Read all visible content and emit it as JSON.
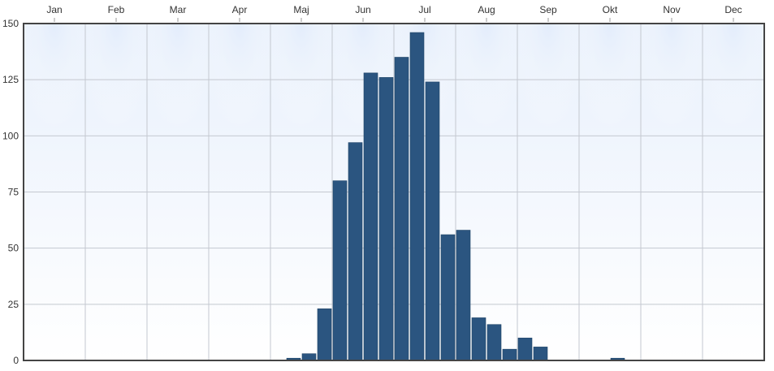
{
  "chart_data": {
    "type": "bar",
    "x_axis": {
      "position": "top",
      "labels": [
        "Jan",
        "Feb",
        "Mar",
        "Apr",
        "Maj",
        "Jun",
        "Jul",
        "Aug",
        "Sep",
        "Okt",
        "Nov",
        "Dec"
      ]
    },
    "y_axis": {
      "ticks": [
        0,
        25,
        50,
        75,
        100,
        125,
        150
      ],
      "ylim": [
        0,
        150
      ]
    },
    "grid": true,
    "bin_width_months": 0.25,
    "series": [
      {
        "color": "#2b5580",
        "bins": [
          {
            "start": 4.25,
            "value": 1
          },
          {
            "start": 4.5,
            "value": 3
          },
          {
            "start": 4.75,
            "value": 23
          },
          {
            "start": 5.0,
            "value": 80
          },
          {
            "start": 5.25,
            "value": 97
          },
          {
            "start": 5.5,
            "value": 128
          },
          {
            "start": 5.75,
            "value": 126
          },
          {
            "start": 6.0,
            "value": 135
          },
          {
            "start": 6.25,
            "value": 146
          },
          {
            "start": 6.5,
            "value": 124
          },
          {
            "start": 6.75,
            "value": 56
          },
          {
            "start": 7.0,
            "value": 58
          },
          {
            "start": 7.25,
            "value": 19
          },
          {
            "start": 7.5,
            "value": 16
          },
          {
            "start": 7.75,
            "value": 5
          },
          {
            "start": 8.0,
            "value": 10
          },
          {
            "start": 8.25,
            "value": 6
          },
          {
            "start": 9.5,
            "value": 1
          }
        ]
      }
    ]
  }
}
